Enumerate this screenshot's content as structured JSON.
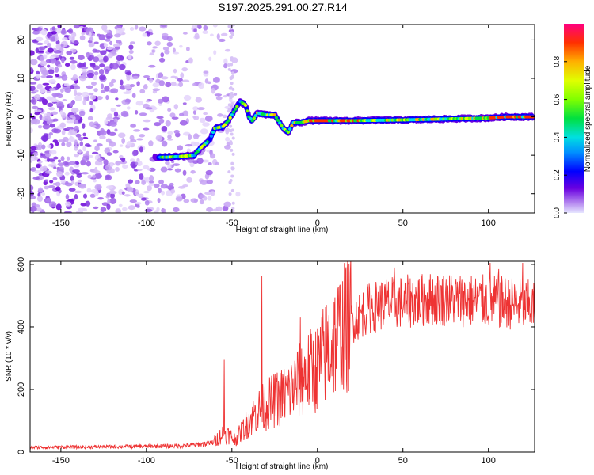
{
  "title": "S197.2025.291.00.27.R14",
  "chart_data": [
    {
      "type": "heatmap",
      "panel": "top",
      "xlabel": "Height of straight line (km)",
      "ylabel": "Frequency (Hz)",
      "xlim": [
        -168,
        127
      ],
      "ylim": [
        -25,
        24
      ],
      "xticks": [
        -150,
        -100,
        -50,
        0,
        50,
        100
      ],
      "xtick_labels": [
        "-150",
        "-100",
        "-50",
        "0",
        "50",
        "100"
      ],
      "yticks": [
        -20,
        -10,
        0,
        10,
        20
      ],
      "ytick_labels": [
        "-20",
        "-10",
        "0",
        "10",
        "20"
      ],
      "colorbar": {
        "label": "Normalized spectral amplitude",
        "range": [
          0,
          1
        ],
        "ticks": [
          0.0,
          0.2,
          0.4,
          0.6,
          0.8
        ],
        "tick_labels": [
          "0.0",
          "0.2",
          "0.4",
          "0.6",
          "0.8"
        ]
      },
      "ridge": {
        "description_points_x": [
          -92,
          -88,
          -80,
          -72,
          -68,
          -63,
          -60,
          -55,
          -52,
          -48,
          -45,
          -42,
          -40,
          -38,
          -35,
          -30,
          -25,
          -20,
          -17,
          -14,
          -10,
          -5,
          0,
          20,
          50,
          80,
          100,
          110,
          126
        ],
        "description_points_y": [
          -10.5,
          -10.5,
          -10.3,
          -10,
          -8,
          -6,
          -3,
          -2.5,
          -1,
          2,
          4,
          3,
          0,
          -1,
          1,
          0.5,
          0.5,
          -3,
          -4,
          -1.5,
          -1.5,
          -1,
          -1,
          -1,
          -0.8,
          -0.5,
          -0.3,
          0,
          0
        ],
        "peak_amplitude_range_x": [
          -90,
          126
        ]
      },
      "noise_region_x": [
        -168,
        -50
      ]
    },
    {
      "type": "line",
      "panel": "bottom",
      "xlabel": "Height of straight line (km)",
      "ylabel": "SNR (10 * v/v)",
      "xlim": [
        -168,
        127
      ],
      "ylim": [
        0,
        610
      ],
      "xticks": [
        -150,
        -100,
        -50,
        0,
        50,
        100
      ],
      "xtick_labels": [
        "-150",
        "-100",
        "-50",
        "0",
        "50",
        "100"
      ],
      "yticks": [
        0,
        200,
        400,
        600
      ],
      "ytick_labels": [
        "0",
        "200",
        "400",
        "600"
      ],
      "color": "#ee3333",
      "trend_x": [
        -168,
        -120,
        -80,
        -62,
        -58,
        -55,
        -52,
        -48,
        -45,
        -40,
        -35,
        -30,
        -25,
        -20,
        -15,
        -10,
        -5,
        0,
        5,
        10,
        15,
        20,
        25,
        30,
        40,
        50,
        60,
        70,
        80,
        90,
        100,
        110,
        120,
        127
      ],
      "trend_y": [
        15,
        17,
        20,
        28,
        45,
        60,
        55,
        40,
        60,
        100,
        130,
        150,
        165,
        180,
        200,
        230,
        255,
        270,
        320,
        360,
        390,
        420,
        440,
        460,
        475,
        480,
        485,
        490,
        488,
        485,
        480,
        478,
        470,
        465
      ],
      "spikes": [
        {
          "x": -54.5,
          "y": 295
        },
        {
          "x": -32.5,
          "y": 562
        },
        {
          "x": -10,
          "y": 430
        },
        {
          "x": 45,
          "y": 590
        },
        {
          "x": 101,
          "y": 605
        },
        {
          "x": 106,
          "y": 585
        },
        {
          "x": 120,
          "y": 605
        }
      ]
    }
  ]
}
